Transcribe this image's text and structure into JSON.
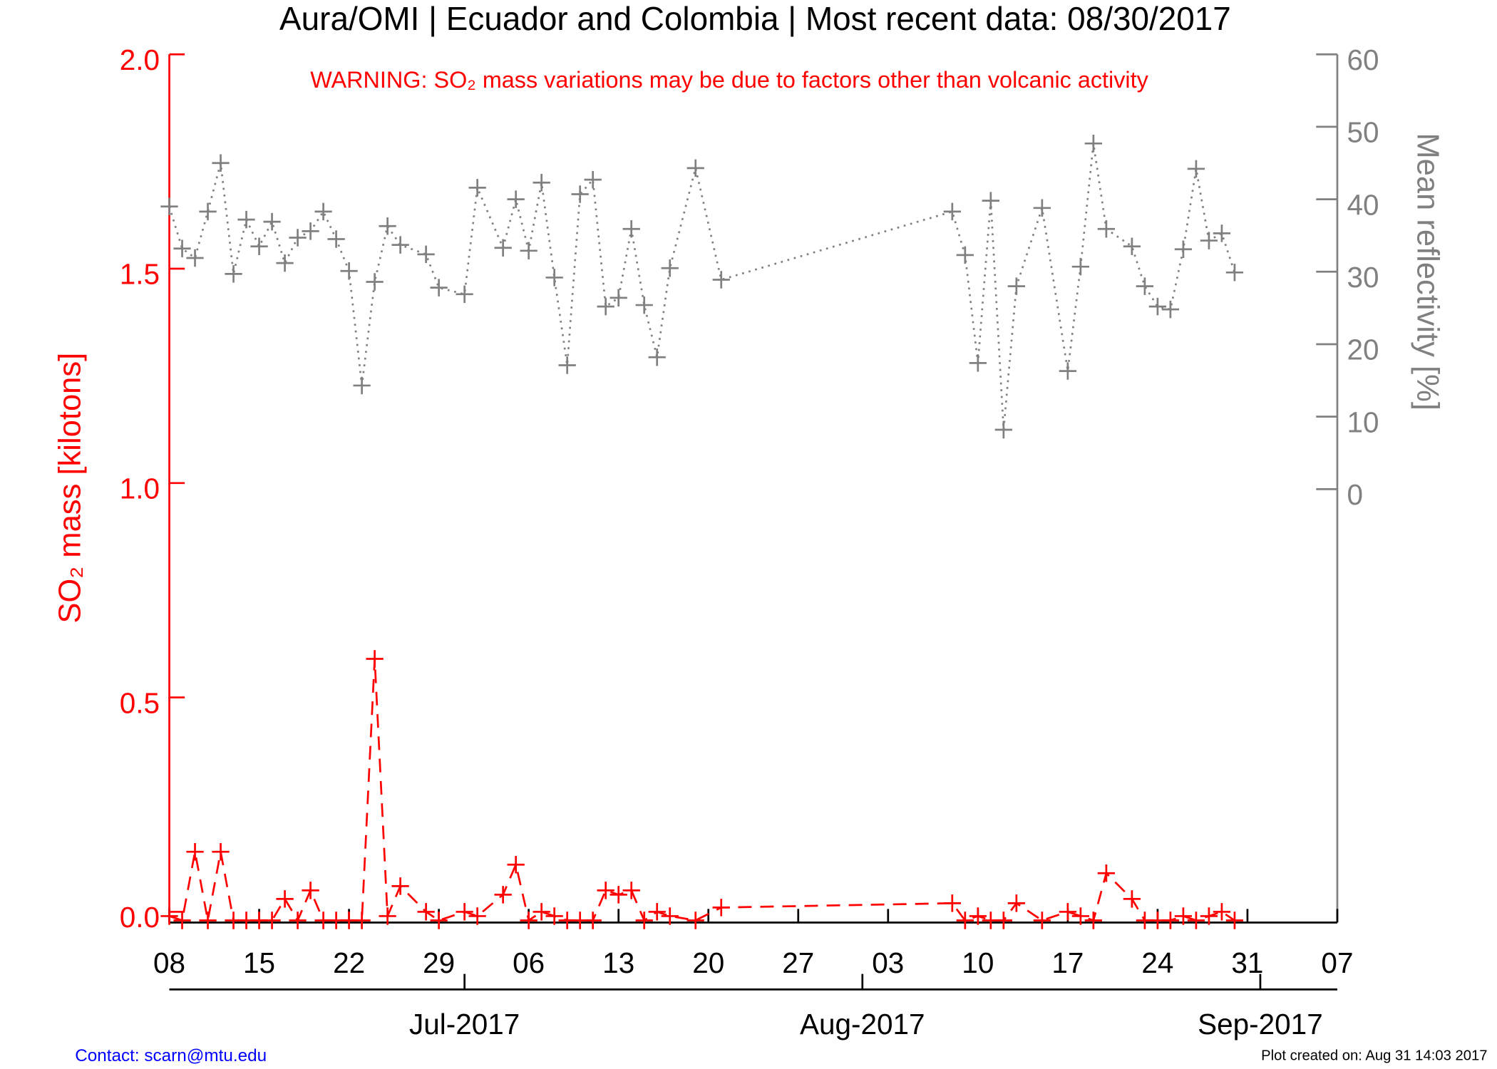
{
  "chart_data": {
    "type": "line",
    "title": "Aura/OMI | Ecuador and Colombia | Most recent data: 08/30/2017",
    "annotation": "WARNING: SO₂ mass variations may be due to factors other than volcanic activity",
    "ylabel": "SO₂ mass [kilotons]",
    "y2label": "Mean reflectivity [%]",
    "x": [
      "2017-06-08",
      "2017-06-09",
      "2017-06-10",
      "2017-06-11",
      "2017-06-12",
      "2017-06-13",
      "2017-06-14",
      "2017-06-15",
      "2017-06-16",
      "2017-06-17",
      "2017-06-18",
      "2017-06-19",
      "2017-06-20",
      "2017-06-21",
      "2017-06-22",
      "2017-06-23",
      "2017-06-24",
      "2017-06-25",
      "2017-06-26",
      "2017-06-28",
      "2017-06-29",
      "2017-07-01",
      "2017-07-02",
      "2017-07-04",
      "2017-07-05",
      "2017-07-06",
      "2017-07-07",
      "2017-07-08",
      "2017-07-09",
      "2017-07-10",
      "2017-07-11",
      "2017-07-12",
      "2017-07-13",
      "2017-07-14",
      "2017-07-15",
      "2017-07-16",
      "2017-07-17",
      "2017-07-19",
      "2017-07-21",
      "2017-08-08",
      "2017-08-09",
      "2017-08-10",
      "2017-08-11",
      "2017-08-12",
      "2017-08-13",
      "2017-08-15",
      "2017-08-17",
      "2017-08-18",
      "2017-08-19",
      "2017-08-20",
      "2017-08-22",
      "2017-08-23",
      "2017-08-24",
      "2017-08-25",
      "2017-08-26",
      "2017-08-27",
      "2017-08-28",
      "2017-08-29",
      "2017-08-30"
    ],
    "xlim": [
      "2017-06-08",
      "2017-09-07"
    ],
    "xticks": [
      {
        "value": "2017-06-08",
        "label": "08"
      },
      {
        "value": "2017-06-15",
        "label": "15"
      },
      {
        "value": "2017-06-22",
        "label": "22"
      },
      {
        "value": "2017-06-29",
        "label": "29"
      },
      {
        "value": "2017-07-06",
        "label": "06"
      },
      {
        "value": "2017-07-13",
        "label": "13"
      },
      {
        "value": "2017-07-20",
        "label": "20"
      },
      {
        "value": "2017-07-27",
        "label": "27"
      },
      {
        "value": "2017-08-03",
        "label": "03"
      },
      {
        "value": "2017-08-10",
        "label": "10"
      },
      {
        "value": "2017-08-17",
        "label": "17"
      },
      {
        "value": "2017-08-24",
        "label": "24"
      },
      {
        "value": "2017-08-31",
        "label": "31"
      },
      {
        "value": "2017-09-07",
        "label": "07"
      }
    ],
    "month_ticks": [
      {
        "value": "2017-07-01",
        "label": "Jul-2017"
      },
      {
        "value": "2017-08-01",
        "label": "Aug-2017"
      },
      {
        "value": "2017-09-01",
        "label": "Sep-2017"
      }
    ],
    "ylim": [
      -0.025,
      2.0
    ],
    "yticks": [
      {
        "value": 0,
        "label": "0.0"
      },
      {
        "value": 0.5,
        "label": "0.5"
      },
      {
        "value": 1,
        "label": "1.0"
      },
      {
        "value": 1.5,
        "label": "1.5"
      },
      {
        "value": 2,
        "label": "2.0"
      }
    ],
    "y2lim": [
      -59.8,
      60
    ],
    "y2ticks": [
      0,
      10,
      20,
      30,
      40,
      50,
      60
    ],
    "series": [
      {
        "color": "#ff0000",
        "line": "dashed",
        "axis": "y",
        "values": [
          -0.01,
          -0.02,
          0.14,
          -0.02,
          0.14,
          -0.02,
          -0.02,
          -0.02,
          -0.02,
          0.03,
          -0.02,
          0.05,
          -0.02,
          -0.02,
          -0.02,
          -0.02,
          0.59,
          -0.01,
          0.06,
          0.0,
          -0.02,
          0.0,
          -0.01,
          0.04,
          0.11,
          -0.02,
          0.0,
          -0.01,
          -0.02,
          -0.02,
          -0.02,
          0.05,
          0.04,
          0.05,
          -0.02,
          0.0,
          -0.01,
          -0.02,
          0.01,
          0.02,
          -0.02,
          -0.01,
          -0.02,
          -0.02,
          0.02,
          -0.02,
          0.0,
          -0.01,
          -0.02,
          0.09,
          0.03,
          -0.02,
          -0.02,
          -0.02,
          -0.01,
          -0.02,
          -0.01,
          0.0,
          -0.02
        ]
      },
      {
        "color": "#808080",
        "line": "dotted",
        "axis": "y2",
        "values": [
          39.0,
          33.2,
          31.9,
          38.3,
          45.0,
          29.7,
          37.2,
          33.5,
          36.9,
          31.2,
          34.7,
          35.6,
          38.3,
          34.5,
          30.1,
          14.3,
          28.6,
          36.3,
          33.7,
          32.4,
          27.8,
          26.9,
          41.6,
          33.3,
          40.0,
          32.9,
          42.3,
          29.2,
          17.1,
          40.7,
          42.7,
          25.2,
          26.4,
          35.9,
          25.4,
          18.2,
          30.5,
          44.3,
          28.9,
          38.3,
          32.3,
          17.4,
          39.8,
          8.2,
          28.0,
          38.8,
          16.3,
          30.7,
          47.7,
          35.9,
          33.5,
          28.0,
          25.2,
          24.8,
          33.1,
          44.2,
          34.3,
          35.3,
          29.9
        ]
      }
    ],
    "footer": {
      "contact": "Contact: scarn@mtu.edu",
      "created": "Plot created on: Aug 31 14:03 2017"
    }
  }
}
